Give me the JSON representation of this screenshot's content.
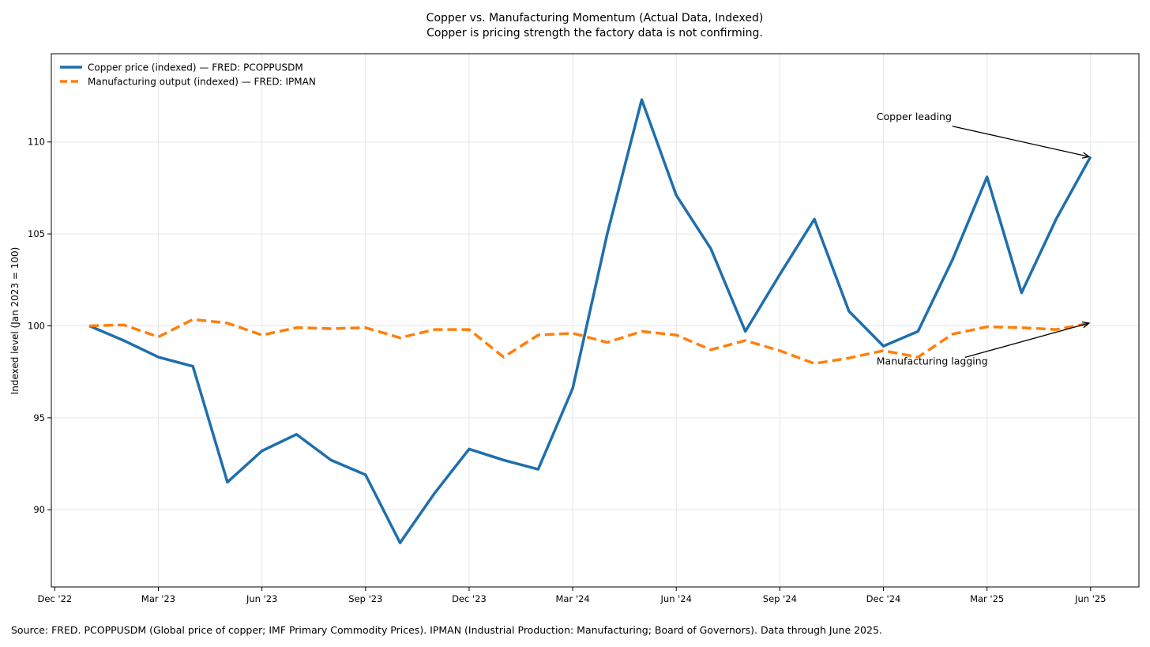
{
  "chart_data": {
    "type": "line",
    "title": "Copper vs. Manufacturing Momentum (Actual Data, Indexed)",
    "subtitle": "Copper is pricing strength the factory data is not confirming.",
    "xlabel": "",
    "ylabel": "Indexed level (Jan 2023 = 100)",
    "ylim": [
      85.8,
      114.8
    ],
    "y_ticks": [
      90,
      95,
      100,
      105,
      110
    ],
    "x_range_months": [
      -1.1,
      30.4
    ],
    "x_ticks": [
      {
        "label": "Dec '22",
        "month": -1
      },
      {
        "label": "Mar '23",
        "month": 2
      },
      {
        "label": "Jun '23",
        "month": 5
      },
      {
        "label": "Sep '23",
        "month": 8
      },
      {
        "label": "Dec '23",
        "month": 11
      },
      {
        "label": "Mar '24",
        "month": 14
      },
      {
        "label": "Jun '24",
        "month": 17
      },
      {
        "label": "Sep '24",
        "month": 20
      },
      {
        "label": "Dec '24",
        "month": 23
      },
      {
        "label": "Mar '25",
        "month": 26
      },
      {
        "label": "Jun '25",
        "month": 29
      }
    ],
    "x": [
      "2023-01",
      "2023-02",
      "2023-03",
      "2023-04",
      "2023-05",
      "2023-06",
      "2023-07",
      "2023-08",
      "2023-09",
      "2023-10",
      "2023-11",
      "2023-12",
      "2024-01",
      "2024-02",
      "2024-03",
      "2024-04",
      "2024-05",
      "2024-06",
      "2024-07",
      "2024-08",
      "2024-09",
      "2024-10",
      "2024-11",
      "2024-12",
      "2025-01",
      "2025-02",
      "2025-03",
      "2025-04",
      "2025-05",
      "2025-06"
    ],
    "series": [
      {
        "name": "Copper price (indexed) — FRED: PCOPPUSDM",
        "color": "#1f6fad",
        "style": "solid",
        "values": [
          100.0,
          99.2,
          98.3,
          97.8,
          91.5,
          93.2,
          94.1,
          92.7,
          91.9,
          88.2,
          90.9,
          93.3,
          92.7,
          92.2,
          96.6,
          105.0,
          112.3,
          107.1,
          104.2,
          99.7,
          102.8,
          105.8,
          100.8,
          98.9,
          99.7,
          103.6,
          108.1,
          101.8,
          105.8,
          109.2
        ]
      },
      {
        "name": "Manufacturing output (indexed) — FRED: IPMAN",
        "color": "#ff7f0e",
        "style": "dashed",
        "values": [
          100.0,
          100.05,
          99.4,
          100.35,
          100.15,
          99.5,
          99.9,
          99.85,
          99.9,
          99.35,
          99.8,
          99.8,
          98.3,
          99.5,
          99.6,
          99.1,
          99.7,
          99.5,
          98.7,
          99.2,
          98.65,
          97.95,
          98.25,
          98.65,
          98.3,
          99.55,
          99.95,
          99.9,
          99.8,
          100.15
        ]
      }
    ],
    "legend": {
      "placement": "top-left"
    },
    "grid": true,
    "annotations": [
      {
        "text": "Copper leading",
        "target_month": 29,
        "target_value": 109.2,
        "text_month": 22.8,
        "text_value": 111.2
      },
      {
        "text": "Manufacturing lagging",
        "target_month": 29,
        "target_value": 100.15,
        "text_month": 22.8,
        "text_value": 97.9
      }
    ]
  },
  "footer": {
    "source": "Source: FRED. PCOPPUSDM (Global price of copper; IMF Primary Commodity Prices). IPMAN (Industrial Production: Manufacturing; Board of Governors). Data through June 2025."
  }
}
